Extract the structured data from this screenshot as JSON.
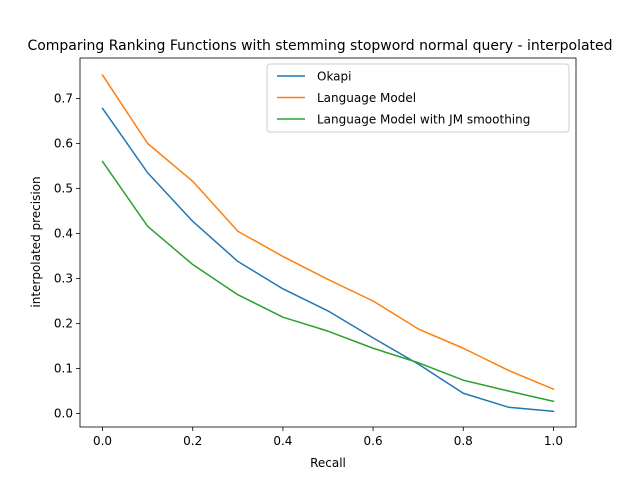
{
  "chart_data": {
    "type": "line",
    "title": "Comparing Ranking Functions with stemming stopword normal query - interpolated",
    "xlabel": "Recall",
    "ylabel": "interpolated precision",
    "xlim": [
      -0.05,
      1.05
    ],
    "ylim": [
      -0.03,
      0.79
    ],
    "xticks": [
      0.0,
      0.2,
      0.4,
      0.6,
      0.8,
      1.0
    ],
    "xtick_labels": [
      "0.0",
      "0.2",
      "0.4",
      "0.6",
      "0.8",
      "1.0"
    ],
    "yticks": [
      0.0,
      0.1,
      0.2,
      0.3,
      0.4,
      0.5,
      0.6,
      0.7
    ],
    "ytick_labels": [
      "0.0",
      "0.1",
      "0.2",
      "0.3",
      "0.4",
      "0.5",
      "0.6",
      "0.7"
    ],
    "grid": false,
    "legend_position": "top-right",
    "x": [
      0.0,
      0.1,
      0.2,
      0.3,
      0.4,
      0.5,
      0.6,
      0.7,
      0.8,
      0.9,
      1.0
    ],
    "series": [
      {
        "name": "Okapi",
        "color": "#1f77b4",
        "values": [
          0.678,
          0.535,
          0.427,
          0.338,
          0.277,
          0.228,
          0.168,
          0.11,
          0.045,
          0.014,
          0.005
        ]
      },
      {
        "name": "Language Model",
        "color": "#ff7f0e",
        "values": [
          0.752,
          0.6,
          0.516,
          0.405,
          0.349,
          0.298,
          0.25,
          0.188,
          0.145,
          0.096,
          0.054
        ]
      },
      {
        "name": "Language Model with JM smoothing",
        "color": "#2ca02c",
        "values": [
          0.56,
          0.416,
          0.331,
          0.264,
          0.214,
          0.183,
          0.145,
          0.113,
          0.074,
          0.05,
          0.027
        ]
      }
    ]
  }
}
